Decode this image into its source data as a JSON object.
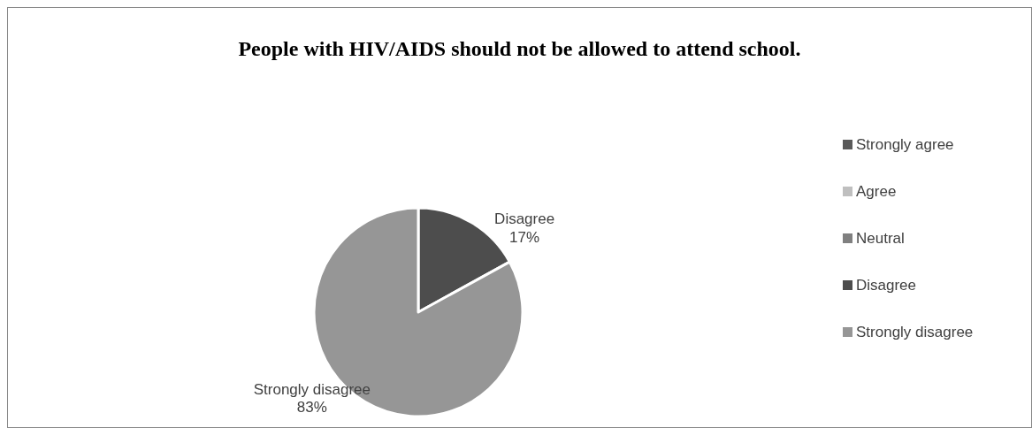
{
  "chart_data": {
    "type": "pie",
    "title": "People with HIV/AIDS should not be allowed to attend school.",
    "categories": [
      "Strongly agree",
      "Agree",
      "Neutral",
      "Disagree",
      "Strongly disagree"
    ],
    "values": [
      0,
      0,
      0,
      17,
      83
    ],
    "colors": [
      "#595959",
      "#bfbfbf",
      "#808080",
      "#4d4d4d",
      "#969696"
    ],
    "value_labels": [
      null,
      null,
      null,
      "17%",
      "83%"
    ],
    "legend": "right"
  }
}
